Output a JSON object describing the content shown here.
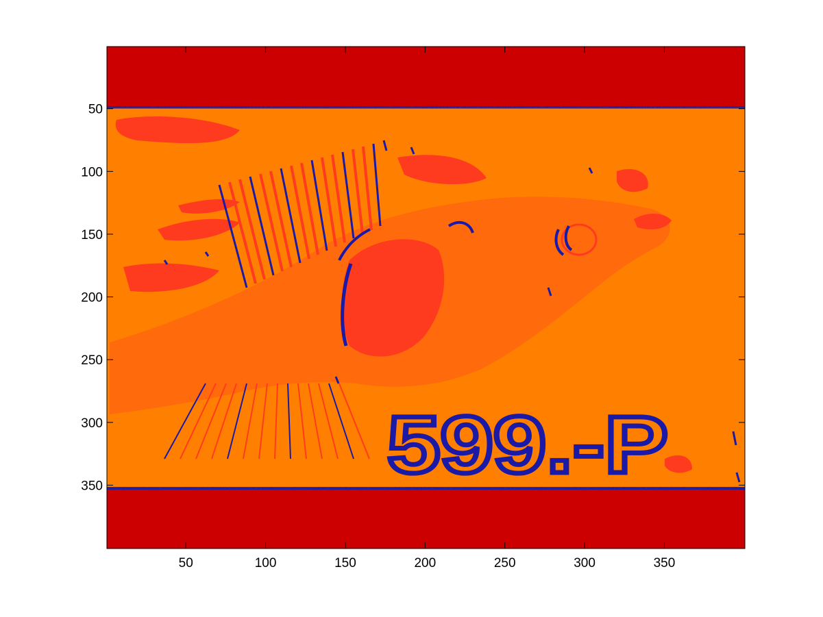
{
  "image": {
    "x_ticks": [
      "50",
      "100",
      "150",
      "200",
      "250",
      "300",
      "350"
    ],
    "y_ticks": [
      "50",
      "100",
      "150",
      "200",
      "250",
      "300",
      "350"
    ],
    "x_tick_values": [
      50,
      100,
      150,
      200,
      250,
      300,
      350
    ],
    "y_tick_values": [
      50,
      100,
      150,
      200,
      250,
      300,
      350
    ],
    "x_range": [
      0.5,
      400.5
    ],
    "y_range": [
      0.5,
      400.5
    ],
    "overlay_text": "599.-P",
    "colors": {
      "band": "#cc0000",
      "background": "#ff7f00",
      "fish": "#ff6a0d",
      "dark_patch": "#ff3b1f",
      "edge": "#1a1aa6",
      "axes": "#000000"
    }
  }
}
